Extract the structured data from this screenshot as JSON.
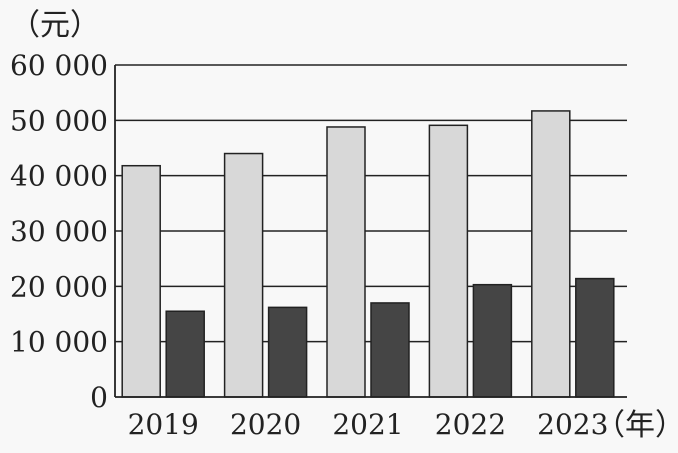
{
  "chart_data": {
    "type": "bar",
    "y_unit_label": "（元）",
    "x_unit_label": "（年）",
    "categories": [
      "2019",
      "2020",
      "2021",
      "2022",
      "2023"
    ],
    "series": [
      {
        "values": [
          41800,
          44000,
          48800,
          49100,
          51700
        ]
      },
      {
        "values": [
          15500,
          16200,
          17000,
          20300,
          21400
        ]
      }
    ],
    "y_ticks": [
      "60 000",
      "50 000",
      "40 000",
      "30 000",
      "20 000",
      "10 000",
      "0"
    ],
    "ylim": [
      0,
      60000
    ],
    "grid": true,
    "colors": {
      "series_0": "#d8d8d8",
      "series_1": "#454545",
      "axis": "#222222",
      "grid": "#222222",
      "background": "#f8f8f8"
    }
  }
}
